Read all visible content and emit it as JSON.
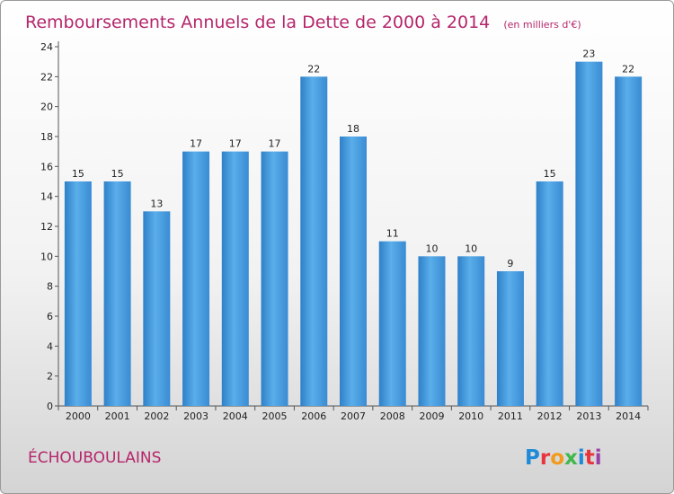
{
  "chart_data": {
    "type": "bar",
    "title": "Remboursements Annuels de la Dette de 2000 à 2014",
    "subtitle": "(en milliers d'€)",
    "categories": [
      "2000",
      "2001",
      "2002",
      "2003",
      "2004",
      "2005",
      "2006",
      "2007",
      "2008",
      "2009",
      "2010",
      "2011",
      "2012",
      "2013",
      "2014"
    ],
    "values": [
      15,
      15,
      13,
      17,
      17,
      17,
      22,
      18,
      11,
      10,
      10,
      9,
      15,
      23,
      22
    ],
    "ylim": [
      0,
      24
    ],
    "yticks": [
      0,
      2,
      4,
      6,
      8,
      10,
      12,
      14,
      16,
      18,
      20,
      22,
      24
    ],
    "grid": false,
    "bar_color": "#4a9ee0",
    "data_labels": true
  },
  "footer": {
    "commune": "ÉCHOUBOULAINS",
    "logo": "Proxiti"
  },
  "colors": {
    "title": "#b5256b",
    "bar": "#4a9ee0"
  }
}
